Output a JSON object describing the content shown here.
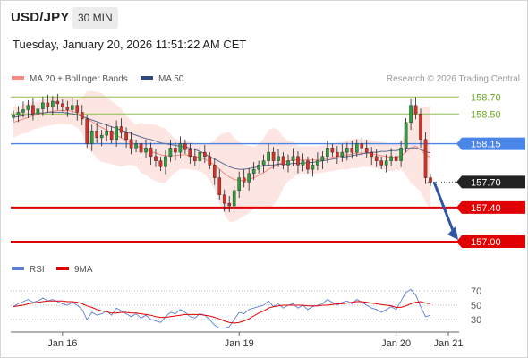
{
  "header": {
    "symbol": "USD/JPY",
    "timeframe": "30 MIN",
    "timestamp": "Tuesday, January 20, 2026 11:51:22 AM CET"
  },
  "legend": {
    "items": [
      {
        "label": "MA 20 + Bollinger Bands",
        "color": "#f28b82"
      },
      {
        "label": "MA 50",
        "color": "#2e4a7d"
      }
    ],
    "credit": "Research © 2026 Trading Central"
  },
  "rsi_legend": {
    "items": [
      {
        "label": "RSI",
        "color": "#5b7fd6"
      },
      {
        "label": "9MA",
        "color": "#e00000"
      }
    ]
  },
  "chart_data": [
    {
      "type": "candlestick",
      "title": "USD/JPY 30 MIN",
      "ylim": [
        156.8,
        158.85
      ],
      "x_ticks": [
        "Jan 16",
        "Jan 19",
        "Jan 20",
        "Jan 21"
      ],
      "levels": [
        {
          "value": 158.7,
          "label": "158.70",
          "kind": "resistance"
        },
        {
          "value": 158.5,
          "label": "158.50",
          "kind": "resistance"
        },
        {
          "value": 158.15,
          "label": "158.15",
          "kind": "pivot"
        },
        {
          "value": 157.7,
          "label": "157.70",
          "kind": "last"
        },
        {
          "value": 157.4,
          "label": "157.40",
          "kind": "support"
        },
        {
          "value": 157.0,
          "label": "157.00",
          "kind": "support"
        }
      ],
      "series": [
        {
          "name": "price",
          "values": [
            158.49,
            158.52,
            158.55,
            158.6,
            158.5,
            158.56,
            158.63,
            158.58,
            158.65,
            158.62,
            158.58,
            158.55,
            158.6,
            158.52,
            158.44,
            158.15,
            158.3,
            158.22,
            158.25,
            158.3,
            158.2,
            158.35,
            158.28,
            158.2,
            158.1,
            158.15,
            158.05,
            158.1,
            158.0,
            157.95,
            157.88,
            158.0,
            158.1,
            158.05,
            158.15,
            158.08,
            158.0,
            157.95,
            158.05,
            158.0,
            157.9,
            157.75,
            157.55,
            157.45,
            157.42,
            157.6,
            157.75,
            157.7,
            157.8,
            157.85,
            157.9,
            157.95,
            158.05,
            157.95,
            158.0,
            157.9,
            157.95,
            158.0,
            157.9,
            157.95,
            157.85,
            157.9,
            157.95,
            158.0,
            158.1,
            158.05,
            158.0,
            158.05,
            158.1,
            158.05,
            158.15,
            158.1,
            158.05,
            158.0,
            157.95,
            157.9,
            157.95,
            158.0,
            157.95,
            158.1,
            158.4,
            158.6,
            158.5,
            158.2,
            157.75,
            157.7
          ]
        },
        {
          "name": "MA 20",
          "values": [
            158.4,
            158.42,
            158.44,
            158.46,
            158.48,
            158.49,
            158.51,
            158.52,
            158.53,
            158.54,
            158.54,
            158.54,
            158.53,
            158.51,
            158.48,
            158.44,
            158.41,
            158.37,
            158.34,
            158.31,
            158.28,
            158.25,
            158.22,
            158.19,
            158.16,
            158.13,
            158.1,
            158.08,
            158.06,
            158.04,
            158.02,
            158.01,
            158.01,
            158.01,
            158.02,
            158.02,
            158.01,
            158.0,
            157.99,
            157.97,
            157.94,
            157.9,
            157.85,
            157.8,
            157.76,
            157.73,
            157.72,
            157.72,
            157.73,
            157.75,
            157.78,
            157.81,
            157.85,
            157.88,
            157.91,
            157.93,
            157.95,
            157.96,
            157.96,
            157.96,
            157.96,
            157.96,
            157.96,
            157.97,
            157.98,
            157.99,
            158.0,
            158.01,
            158.02,
            158.03,
            158.04,
            158.04,
            158.04,
            158.03,
            158.02,
            158.01,
            158.0,
            157.99,
            157.99,
            158.01,
            158.05,
            158.1,
            158.12,
            158.08,
            158.02,
            157.99
          ]
        },
        {
          "name": "MA 50",
          "values": [
            158.46,
            158.47,
            158.48,
            158.49,
            158.5,
            158.51,
            158.51,
            158.52,
            158.52,
            158.52,
            158.52,
            158.51,
            158.5,
            158.49,
            158.47,
            158.45,
            158.43,
            158.41,
            158.39,
            158.37,
            158.35,
            158.33,
            158.31,
            158.29,
            158.27,
            158.25,
            158.23,
            158.21,
            158.2,
            158.18,
            158.16,
            158.15,
            158.14,
            158.13,
            158.12,
            158.11,
            158.1,
            158.08,
            158.06,
            158.03,
            158.0,
            157.97,
            157.94,
            157.91,
            157.88,
            157.86,
            157.85,
            157.85,
            157.86,
            157.87,
            157.88,
            157.89,
            157.9,
            157.9,
            157.91,
            157.91,
            157.91,
            157.92,
            157.92,
            157.92,
            157.93,
            157.93,
            157.94,
            157.95,
            157.96,
            157.97,
            157.98,
            157.99,
            158.0,
            158.01,
            158.02,
            158.03,
            158.04,
            158.05,
            158.05,
            158.06,
            158.06,
            158.07,
            158.07,
            158.08,
            158.09,
            158.1,
            158.1,
            158.08,
            158.06,
            158.04
          ]
        }
      ]
    },
    {
      "type": "line",
      "title": "RSI",
      "ylim": [
        15,
        85
      ],
      "y_ticks": [
        70,
        50,
        30
      ],
      "series": [
        {
          "name": "RSI",
          "values": [
            48,
            52,
            55,
            58,
            54,
            56,
            60,
            56,
            58,
            55,
            52,
            50,
            54,
            50,
            44,
            30,
            40,
            36,
            38,
            42,
            36,
            46,
            42,
            38,
            34,
            38,
            32,
            36,
            30,
            28,
            26,
            34,
            40,
            38,
            44,
            40,
            34,
            32,
            38,
            36,
            30,
            22,
            18,
            18,
            20,
            30,
            40,
            38,
            44,
            46,
            48,
            50,
            56,
            48,
            52,
            46,
            50,
            52,
            46,
            50,
            44,
            48,
            50,
            52,
            58,
            54,
            50,
            54,
            56,
            52,
            58,
            54,
            50,
            46,
            44,
            40,
            44,
            48,
            44,
            56,
            68,
            72,
            64,
            48,
            34,
            36
          ]
        },
        {
          "name": "9MA",
          "values": [
            48,
            49,
            50,
            52,
            53,
            54,
            55,
            56,
            56,
            56,
            56,
            55,
            55,
            54,
            52,
            49,
            47,
            44,
            42,
            41,
            39,
            39,
            40,
            40,
            39,
            39,
            38,
            37,
            36,
            34,
            33,
            33,
            34,
            35,
            36,
            37,
            37,
            37,
            37,
            36,
            35,
            33,
            31,
            28,
            26,
            25,
            26,
            28,
            31,
            35,
            39,
            42,
            46,
            48,
            49,
            50,
            50,
            50,
            50,
            50,
            49,
            49,
            49,
            50,
            50,
            51,
            52,
            52,
            53,
            54,
            55,
            55,
            54,
            53,
            52,
            51,
            50,
            49,
            47,
            47,
            49,
            52,
            54,
            55,
            53,
            52
          ]
        }
      ]
    }
  ]
}
